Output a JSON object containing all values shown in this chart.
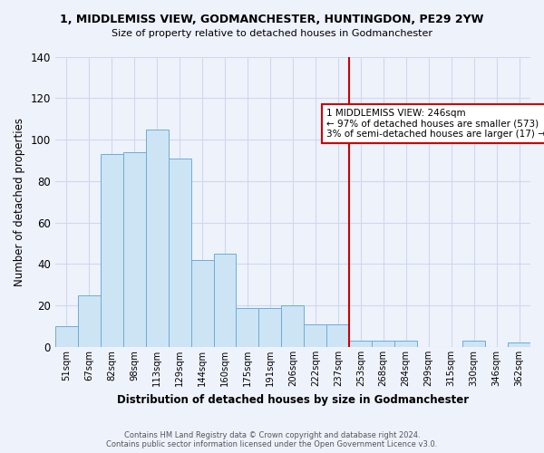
{
  "title": "1, MIDDLEMISS VIEW, GODMANCHESTER, HUNTINGDON, PE29 2YW",
  "subtitle": "Size of property relative to detached houses in Godmanchester",
  "xlabel": "Distribution of detached houses by size in Godmanchester",
  "ylabel": "Number of detached properties",
  "footer_line1": "Contains HM Land Registry data © Crown copyright and database right 2024.",
  "footer_line2": "Contains public sector information licensed under the Open Government Licence v3.0.",
  "categories": [
    "51sqm",
    "67sqm",
    "82sqm",
    "98sqm",
    "113sqm",
    "129sqm",
    "144sqm",
    "160sqm",
    "175sqm",
    "191sqm",
    "206sqm",
    "222sqm",
    "237sqm",
    "253sqm",
    "268sqm",
    "284sqm",
    "299sqm",
    "315sqm",
    "330sqm",
    "346sqm",
    "362sqm"
  ],
  "values": [
    10,
    25,
    93,
    94,
    105,
    91,
    42,
    45,
    19,
    19,
    20,
    11,
    11,
    3,
    3,
    3,
    0,
    0,
    3,
    0,
    2
  ],
  "bar_color": "#cde4f5",
  "bar_edgecolor": "#6aaed6",
  "vline_x_idx": 13,
  "vline_color": "#cc0000",
  "annotation_title": "1 MIDDLEMISS VIEW: 246sqm",
  "annotation_line1": "← 97% of detached houses are smaller (573)",
  "annotation_line2": "3% of semi-detached houses are larger (17) →",
  "annotation_box_color": "#cc0000",
  "ylim": [
    0,
    140
  ],
  "yticks": [
    0,
    20,
    40,
    60,
    80,
    100,
    120,
    140
  ],
  "background_color": "#eef2fb",
  "grid_color": "#d0d8ee"
}
